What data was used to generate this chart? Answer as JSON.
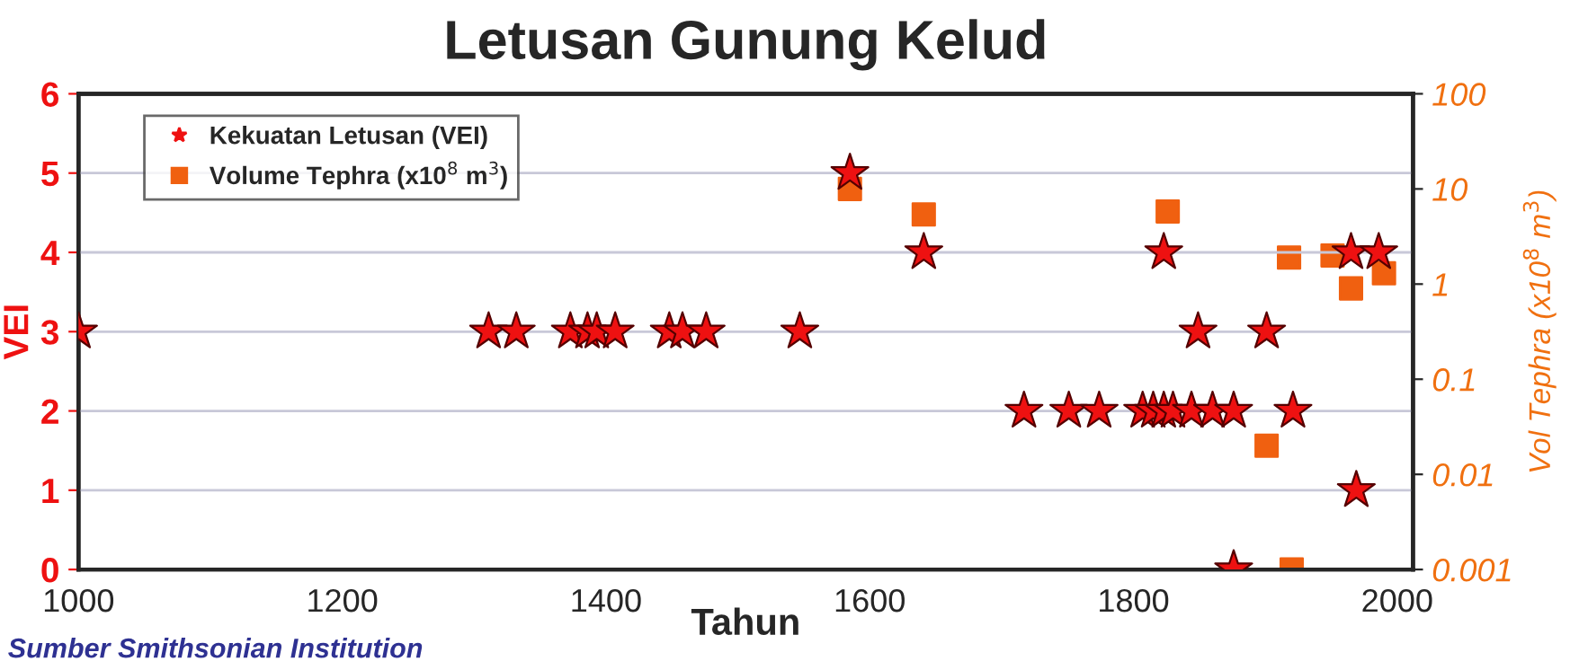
{
  "chart_data": {
    "type": "scatter",
    "title": "Letusan Gunung Kelud",
    "xlabel": "Tahun",
    "ylabel": "VEI",
    "y2label": "Vol Tephra (x10$^{8}$ m$^{3}$)",
    "series": [
      {
        "name": "Kekuatan Letusan (VEI)",
        "color": "#ee1111",
        "marker": "star",
        "x": [
          1000,
          1311,
          1332,
          1373,
          1386,
          1393,
          1407,
          1448,
          1458,
          1476,
          1547,
          1585,
          1641,
          1717,
          1751,
          1774,
          1807,
          1815,
          1823,
          1823,
          1830,
          1844,
          1849,
          1860,
          1876,
          1876,
          1901,
          1921,
          1965,
          1969,
          1986
        ],
        "values": [
          3,
          3,
          3,
          3,
          3,
          3,
          3,
          3,
          3,
          3,
          3,
          5,
          4,
          2,
          2,
          2,
          2,
          2,
          2,
          4,
          2,
          2,
          3,
          2,
          2,
          0,
          3,
          2,
          4,
          1,
          4
        ]
      },
      {
        "name": "Volume Tephra (x10$^{8}$ m$^{3}$)",
        "color": "#f06010",
        "marker": "square",
        "axis": "y2",
        "x": [
          1585,
          1641,
          1826,
          1901,
          1918,
          1920,
          1951,
          1965,
          1990
        ],
        "values": [
          10,
          5.4,
          5.8,
          0.02,
          1.9,
          0.001,
          2,
          0.9,
          1.3
        ]
      }
    ],
    "xlim": [
      1000,
      2012
    ],
    "xticks": [
      1000,
      1200,
      1400,
      1600,
      1800,
      2000
    ],
    "ylim": [
      0,
      6
    ],
    "yticks": [
      0,
      1,
      2,
      3,
      4,
      5,
      6
    ],
    "y2lim": [
      0.001,
      100
    ],
    "y2ticks": [
      0.001,
      0.01,
      0.1,
      1,
      10,
      100
    ],
    "log": "y2",
    "grid": "y",
    "legend": "top left",
    "annotations": [
      "Sumber Smithsonian Institution"
    ]
  }
}
